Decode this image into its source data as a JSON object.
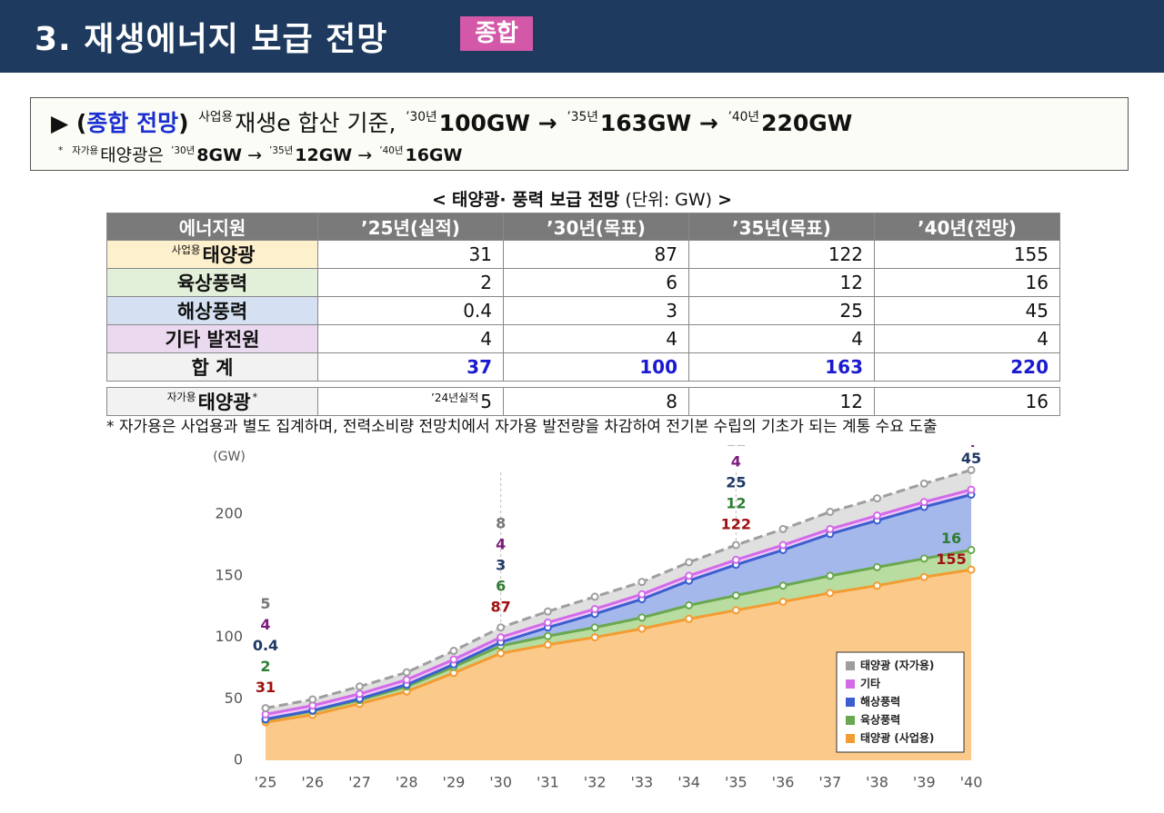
{
  "header": {
    "title": "3. 재생에너지 보급 전망",
    "badge": "종합"
  },
  "summary": {
    "line1": [
      "▶ (",
      "종합 전망",
      ")",
      "사업용",
      "재생e 합산 기준,",
      "’30년",
      "100GW",
      "→",
      "’35년",
      "163GW",
      "→",
      "’40년",
      "220GW"
    ],
    "line2": [
      "*",
      "자가용",
      "태양광은",
      "’30년",
      "8GW",
      "→",
      "’35년",
      "12GW",
      "→",
      "’40년",
      "16GW"
    ]
  },
  "table": {
    "caption": [
      "<",
      "태양광· 풍력 보급 전망",
      "(단위: GW)",
      ">"
    ],
    "header": [
      "에너지원",
      "’25년(실적)",
      "’30년(목표)",
      "’35년(목표)",
      "’40년(전망)"
    ],
    "rows": [
      {
        "sup": "사업용",
        "label": "태양광",
        "values": [
          31,
          87,
          122,
          155
        ]
      },
      {
        "label": "육상풍력",
        "values": [
          2,
          6,
          12,
          16
        ]
      },
      {
        "label": "해상풍력",
        "values": [
          0.4,
          3,
          25,
          45
        ]
      },
      {
        "label": "기타 발전원",
        "values": [
          4,
          4,
          4,
          4
        ]
      },
      {
        "label": "합 계",
        "values": [
          37,
          100,
          163,
          220
        ]
      },
      {
        "sup": "자가용",
        "label": "태양광",
        "mark": "*",
        "note": "’24년실적",
        "values": [
          5,
          8,
          12,
          16
        ]
      }
    ],
    "footnote": "* 자가용은 사업용과 별도 집계하며, 전력소비량 전망치에서 자가용 발전량을 차감하여 전기본 수립의 기초가 되는 계통 수요 도출"
  },
  "chart_data": {
    "type": "stacked_area",
    "y_label": "(GW)",
    "categories": [
      "'25",
      "'26",
      "'27",
      "'28",
      "'29",
      "'30",
      "'31",
      "'32",
      "'33",
      "'34",
      "'35",
      "'36",
      "'37",
      "'38",
      "'39",
      "'40"
    ],
    "ylim": [
      0,
      240
    ],
    "yticks": [
      0,
      50,
      100,
      150,
      200
    ],
    "legend": "lower right",
    "series": [
      {
        "name": "태양광 (사업용)",
        "color": "#f39c32",
        "values": [
          31,
          37,
          46,
          56,
          71,
          87,
          94,
          100,
          107,
          115,
          122,
          129,
          136,
          142,
          149,
          155
        ]
      },
      {
        "name": "육상풍력",
        "color": "#6aa84f",
        "values": [
          2,
          3,
          3,
          4,
          5,
          6,
          7,
          8,
          9,
          11,
          12,
          13,
          14,
          15,
          15,
          16
        ]
      },
      {
        "name": "해상풍력",
        "color": "#3c5fcf",
        "values": [
          0.4,
          0.5,
          1,
          1.5,
          2,
          3,
          7,
          11,
          15,
          20,
          25,
          29,
          34,
          38,
          42,
          45
        ]
      },
      {
        "name": "기타",
        "color": "#d36be8",
        "values": [
          4,
          4,
          4,
          4,
          4,
          4,
          4,
          4,
          4,
          4,
          4,
          4,
          4,
          4,
          4,
          4
        ]
      },
      {
        "name": "태양광 (자가용)",
        "color": "#9e9e9e",
        "values": [
          5,
          5,
          6,
          6,
          7,
          8,
          9,
          10,
          10,
          11,
          12,
          13,
          14,
          14,
          15,
          16
        ]
      }
    ]
  }
}
